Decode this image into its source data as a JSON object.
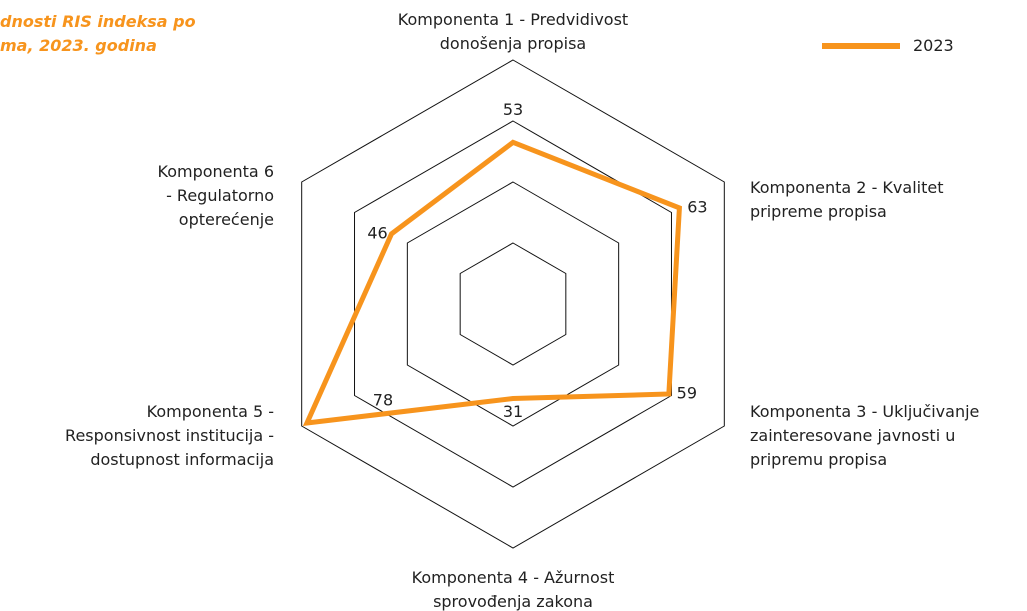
{
  "chart_data": {
    "type": "radar",
    "title": "dnosti RIS indeksa po\nma, 2023. godina",
    "categories": [
      "Komponenta 1 - Predvidivost\ndonošenja propisa",
      "Komponenta 2 - Kvalitet\npripreme propisa",
      "Komponenta 3 - Uključivanje\nzainteresovane javnosti u\npripremu propisa",
      "Komponenta 4 - Ažurnost\nsprovođenja zakona",
      "Komponenta 5 -\nResponsivnost institucija -\ndostupnost informacija",
      "Komponenta 6\n- Regulatorno\nopterećenje"
    ],
    "series": [
      {
        "name": "2023",
        "color": "#f7941d",
        "values": [
          53,
          63,
          59,
          31,
          78,
          46
        ]
      }
    ],
    "ylim": [
      0,
      80
    ],
    "yticks": [
      20,
      40,
      60,
      80
    ],
    "grid": true,
    "legend": "top-right"
  }
}
